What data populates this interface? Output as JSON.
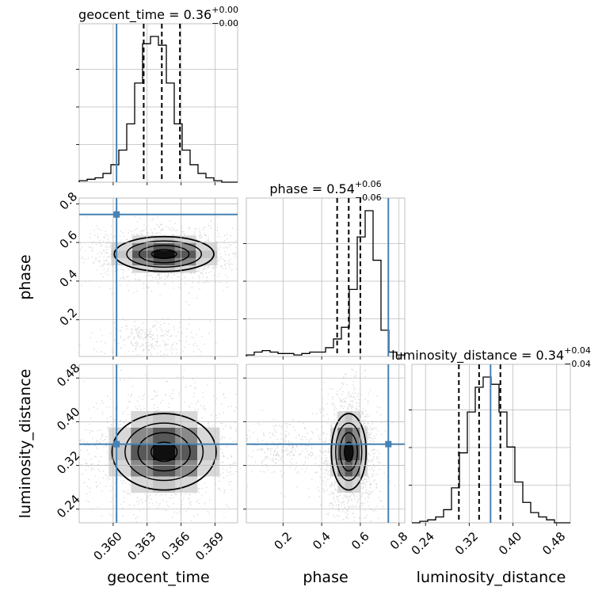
{
  "chart_data": {
    "type": "corner",
    "parameters": [
      {
        "key": "geocent_time",
        "label": "geocent_time",
        "title": "geocent_time = 0.36",
        "title_upper": "+0.00",
        "title_lower": "−0.00",
        "range": [
          0.357,
          0.371
        ],
        "ticks": [
          0.36,
          0.363,
          0.366,
          0.369
        ],
        "tick_labels": [
          "0.360",
          "0.363",
          "0.366",
          "0.369"
        ],
        "truth": 0.3603,
        "quantiles": [
          0.3627,
          0.3643,
          0.3659
        ],
        "hist_bin_width": 0.0007,
        "hist_counts": [
          1,
          2,
          3,
          6,
          12,
          22,
          40,
          68,
          95,
          100,
          94,
          68,
          40,
          22,
          12,
          6,
          3,
          1,
          0,
          0
        ]
      },
      {
        "key": "phase",
        "label": "phase",
        "title": "phase = 0.54",
        "title_upper": "+0.06",
        "title_lower": "−0.06",
        "range": [
          0.01,
          0.83
        ],
        "ticks": [
          0.2,
          0.4,
          0.6,
          0.8
        ],
        "tick_labels": [
          "0.2",
          "0.4",
          "0.6",
          "0.8"
        ],
        "truth": 0.745,
        "quantiles": [
          0.48,
          0.54,
          0.6
        ],
        "hist_bin_width": 0.041,
        "hist_counts": [
          1,
          3,
          4,
          3,
          2,
          2,
          1,
          2,
          3,
          3,
          6,
          12,
          20,
          46,
          82,
          100,
          66,
          18,
          3,
          1
        ]
      },
      {
        "key": "luminosity_distance",
        "label": "luminosity_distance",
        "title": "luminosity_distance = 0.34",
        "title_upper": "+0.04",
        "title_lower": "−0.04",
        "range": [
          0.215,
          0.505
        ],
        "ticks": [
          0.24,
          0.32,
          0.4,
          0.48
        ],
        "tick_labels": [
          "0.24",
          "0.32",
          "0.40",
          "0.48"
        ],
        "truth": 0.359,
        "quantiles": [
          0.301,
          0.338,
          0.377
        ],
        "hist_bin_width": 0.0145,
        "hist_counts": [
          0,
          1,
          2,
          4,
          9,
          24,
          48,
          76,
          93,
          100,
          95,
          76,
          52,
          28,
          14,
          7,
          4,
          2,
          0,
          0
        ]
      }
    ],
    "pairs": [
      {
        "x": "geocent_time",
        "y": "phase",
        "center": [
          0.3645,
          0.54
        ],
        "sigma": [
          0.0022,
          0.045
        ],
        "minor_cluster": [
          0.3632,
          0.1,
          0.0022,
          0.05
        ]
      },
      {
        "x": "geocent_time",
        "y": "luminosity_distance",
        "center": [
          0.3645,
          0.345
        ],
        "sigma": [
          0.0023,
          0.035
        ],
        "minor_cluster": null
      },
      {
        "x": "phase",
        "y": "luminosity_distance",
        "center": [
          0.54,
          0.345
        ],
        "sigma": [
          0.045,
          0.035
        ],
        "minor_cluster": [
          0.2,
          0.35,
          0.1,
          0.03
        ]
      }
    ],
    "truth_color": "#4682b4",
    "grid": true
  }
}
